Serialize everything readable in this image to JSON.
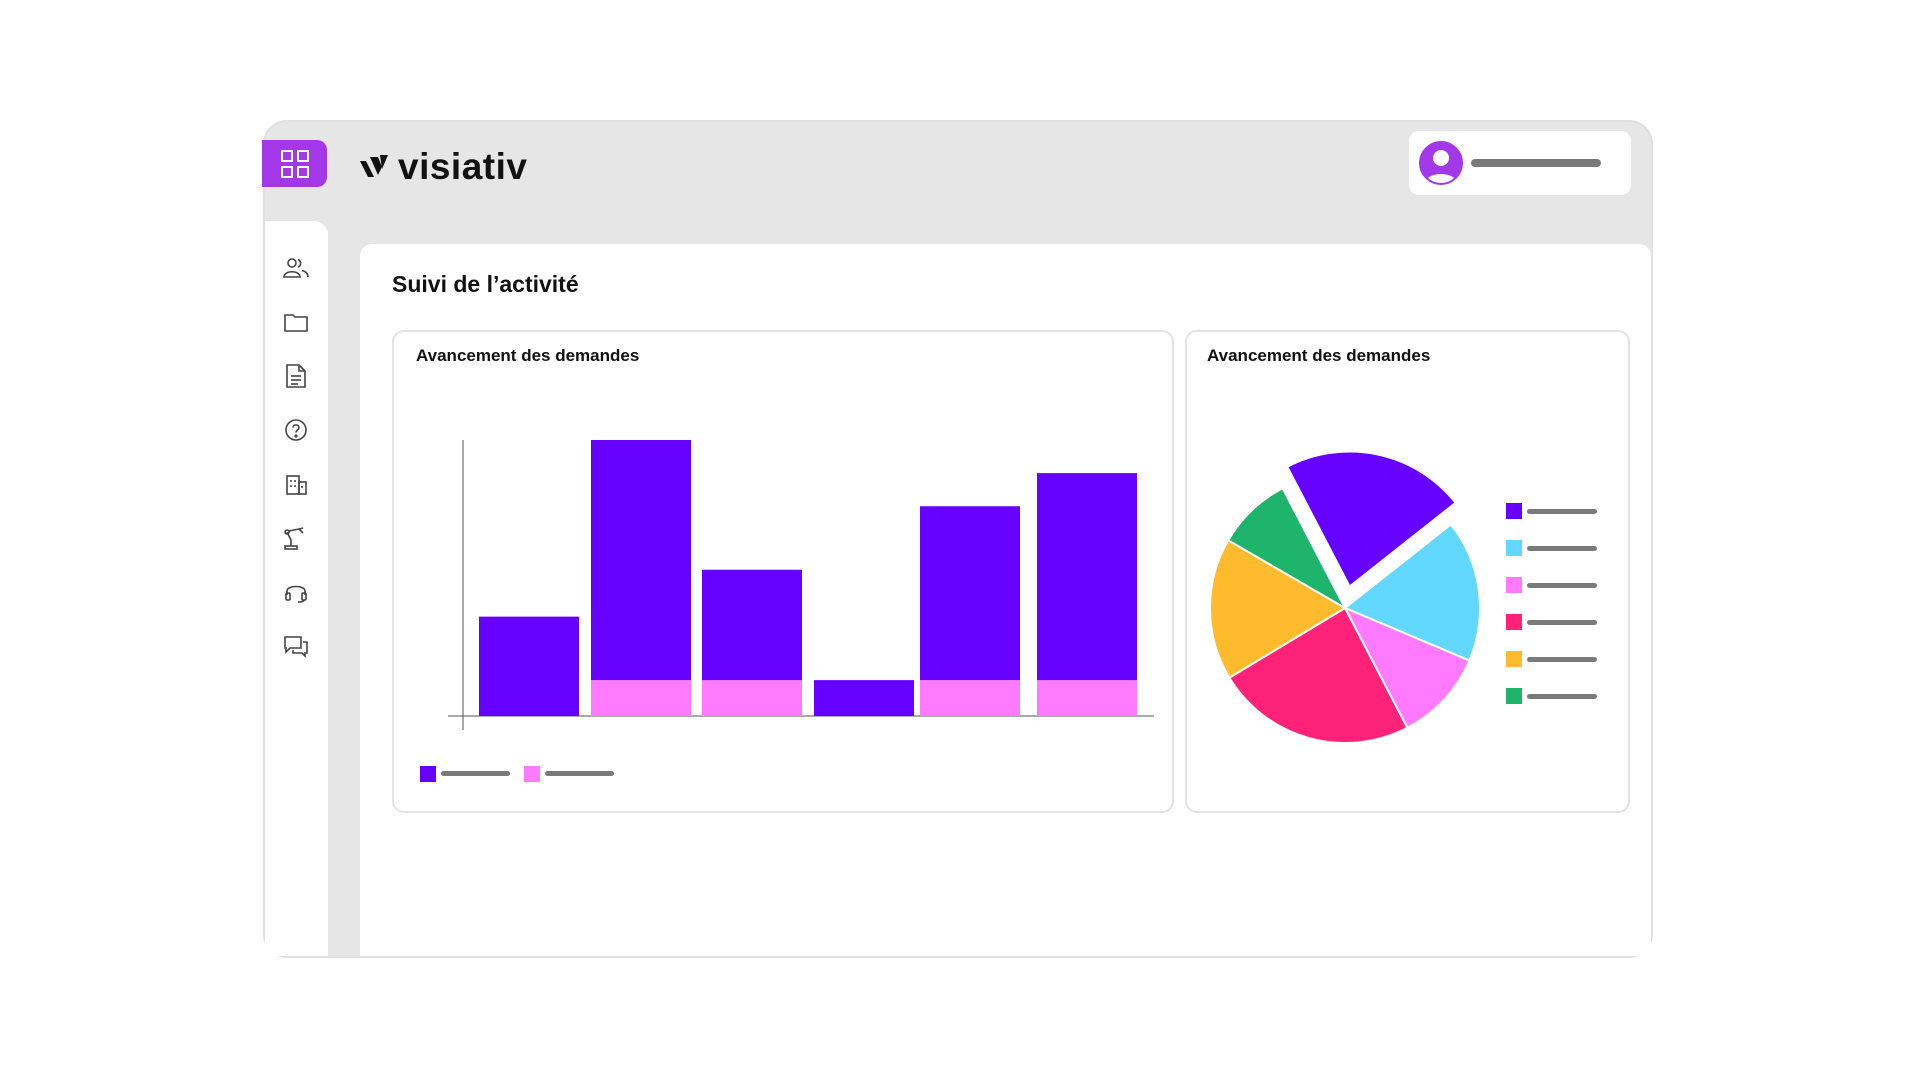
{
  "app": {
    "brand": "visiativ",
    "accent": "#a238e8"
  },
  "header": {
    "app_grid_icon": "grid-icon",
    "user_avatar_icon": "user-avatar-icon"
  },
  "sidebar": {
    "items": [
      {
        "icon": "users-icon"
      },
      {
        "icon": "folder-icon"
      },
      {
        "icon": "document-icon"
      },
      {
        "icon": "help-icon"
      },
      {
        "icon": "building-icon"
      },
      {
        "icon": "robot-arm-icon"
      },
      {
        "icon": "headset-icon"
      },
      {
        "icon": "chat-icon"
      }
    ]
  },
  "main": {
    "title": "Suivi de l’activité"
  },
  "chart_data": [
    {
      "type": "bar",
      "title": "Avancement des demandes",
      "categories": [
        "",
        "",
        "",
        "",
        "",
        ""
      ],
      "stacked": true,
      "series": [
        {
          "color": "#ff7aff",
          "values": [
            0,
            13,
            13,
            0,
            13,
            13
          ]
        },
        {
          "color": "#6600ff",
          "values": [
            36,
            87,
            40,
            13,
            63,
            75
          ]
        }
      ],
      "ylim": [
        0,
        100
      ],
      "legend": "bottom-left"
    },
    {
      "type": "pie",
      "title": "Avancement des demandes",
      "slices": [
        {
          "color": "#6600ff",
          "value": 22,
          "exploded": true
        },
        {
          "color": "#62d7ff",
          "value": 17
        },
        {
          "color": "#ff7aff",
          "value": 11
        },
        {
          "color": "#ff2278",
          "value": 24
        },
        {
          "color": "#ffbb2e",
          "value": 17
        },
        {
          "color": "#1fb46c",
          "value": 9
        }
      ],
      "legend": "right"
    }
  ]
}
